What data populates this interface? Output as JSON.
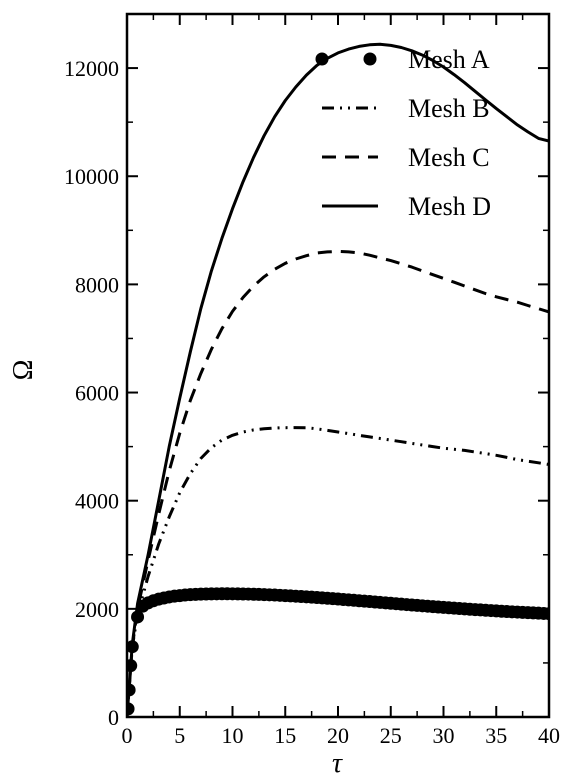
{
  "chart_data": {
    "type": "line",
    "xlabel": "τ",
    "ylabel": "Ω",
    "xlim": [
      0,
      40
    ],
    "ylim": [
      0,
      13000
    ],
    "xticks": [
      0,
      5,
      10,
      15,
      20,
      25,
      30,
      35,
      40
    ],
    "yticks": [
      0,
      2000,
      4000,
      6000,
      8000,
      10000,
      12000
    ],
    "grid": false,
    "legend_position": "top-right",
    "series": [
      {
        "name": "Mesh A",
        "style": "markers",
        "color": "#000000",
        "x": [
          0.1,
          0.2,
          0.35,
          0.5,
          1,
          1.5,
          2,
          2.5,
          3,
          3.5,
          4,
          4.5,
          5,
          5.5,
          6,
          6.5,
          7,
          7.5,
          8,
          8.5,
          9,
          9.5,
          10,
          10.5,
          11,
          11.5,
          12,
          12.5,
          13,
          13.5,
          14,
          14.5,
          15,
          15.5,
          16,
          16.5,
          17,
          17.5,
          18,
          18.5,
          19,
          19.5,
          20,
          20.5,
          21,
          21.5,
          22,
          22.5,
          23,
          23.5,
          24,
          24.5,
          25,
          25.5,
          26,
          26.5,
          27,
          27.5,
          28,
          28.5,
          29,
          29.5,
          30,
          30.5,
          31,
          31.5,
          32,
          32.5,
          33,
          33.5,
          34,
          34.5,
          35,
          35.5,
          36,
          36.5,
          37,
          37.5,
          38,
          38.5,
          39,
          39.5,
          40
        ],
        "y": [
          150,
          500,
          950,
          1300,
          1850,
          2050,
          2110,
          2150,
          2180,
          2200,
          2220,
          2235,
          2245,
          2255,
          2262,
          2268,
          2272,
          2275,
          2277,
          2278,
          2279,
          2279,
          2278,
          2277,
          2275,
          2273,
          2270,
          2267,
          2263,
          2259,
          2255,
          2250,
          2245,
          2240,
          2234,
          2228,
          2222,
          2216,
          2209,
          2202,
          2195,
          2188,
          2181,
          2173,
          2166,
          2158,
          2150,
          2142,
          2135,
          2127,
          2119,
          2111,
          2103,
          2095,
          2087,
          2079,
          2071,
          2064,
          2056,
          2049,
          2041,
          2034,
          2027,
          2020,
          2013,
          2006,
          1999,
          1993,
          1986,
          1980,
          1974,
          1968,
          1962,
          1956,
          1950,
          1945,
          1940,
          1935,
          1930,
          1925,
          1920,
          1915,
          1910
        ]
      },
      {
        "name": "Mesh B",
        "style": "dash-dot-dot",
        "color": "#000000",
        "x": [
          0,
          0.5,
          1,
          2,
          3,
          4,
          5,
          6,
          7,
          8,
          9,
          10,
          11,
          12,
          13,
          14,
          15,
          16,
          17,
          18,
          19,
          20,
          21,
          22,
          23,
          24,
          25,
          26,
          27,
          28,
          29,
          30,
          31,
          32,
          33,
          34,
          35,
          36,
          37,
          38,
          39,
          40
        ],
        "y": [
          0,
          1300,
          1900,
          2600,
          3200,
          3700,
          4150,
          4500,
          4780,
          4980,
          5120,
          5210,
          5270,
          5310,
          5330,
          5345,
          5350,
          5352,
          5350,
          5330,
          5300,
          5270,
          5240,
          5210,
          5180,
          5150,
          5120,
          5090,
          5060,
          5030,
          5000,
          4970,
          4950,
          4930,
          4900,
          4870,
          4840,
          4800,
          4760,
          4730,
          4700,
          4670
        ]
      },
      {
        "name": "Mesh C",
        "style": "dashed",
        "color": "#000000",
        "x": [
          0,
          0.5,
          1,
          2,
          3,
          4,
          5,
          6,
          7,
          8,
          9,
          10,
          11,
          12,
          13,
          14,
          15,
          16,
          17,
          18,
          19,
          20,
          21,
          22,
          23,
          24,
          25,
          26,
          27,
          28,
          29,
          30,
          31,
          32,
          33,
          34,
          35,
          36,
          37,
          38,
          39,
          40
        ],
        "y": [
          0,
          1300,
          2000,
          2900,
          3750,
          4550,
          5250,
          5850,
          6350,
          6800,
          7180,
          7500,
          7760,
          7970,
          8140,
          8280,
          8390,
          8470,
          8530,
          8580,
          8600,
          8610,
          8600,
          8580,
          8540,
          8490,
          8440,
          8380,
          8320,
          8250,
          8180,
          8110,
          8040,
          7970,
          7900,
          7830,
          7770,
          7720,
          7670,
          7610,
          7550,
          7490
        ]
      },
      {
        "name": "Mesh D",
        "style": "solid",
        "color": "#000000",
        "x": [
          0,
          0.5,
          1,
          2,
          3,
          4,
          5,
          6,
          7,
          8,
          9,
          10,
          11,
          12,
          13,
          14,
          15,
          16,
          17,
          18,
          19,
          20,
          21,
          22,
          23,
          24,
          25,
          26,
          27,
          28,
          29,
          30,
          31,
          32,
          33,
          34,
          35,
          36,
          37,
          38,
          39,
          40
        ],
        "y": [
          0,
          1350,
          2100,
          3000,
          4000,
          5000,
          5900,
          6750,
          7550,
          8250,
          8850,
          9400,
          9900,
          10350,
          10750,
          11100,
          11400,
          11650,
          11870,
          12050,
          12180,
          12280,
          12350,
          12400,
          12430,
          12440,
          12420,
          12380,
          12320,
          12240,
          12140,
          12020,
          11880,
          11730,
          11570,
          11410,
          11250,
          11100,
          10950,
          10820,
          10700,
          10650
        ]
      }
    ]
  }
}
